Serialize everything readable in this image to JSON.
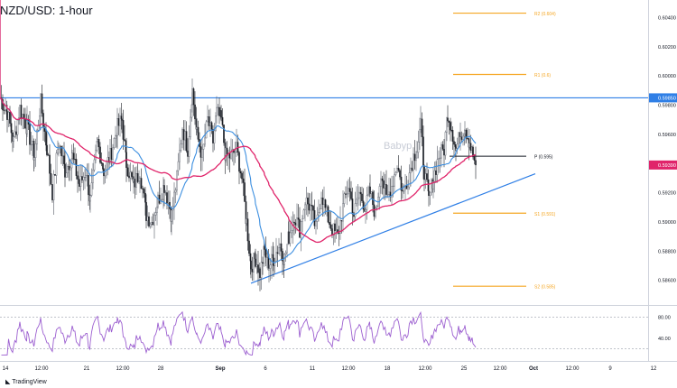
{
  "title": "NZD/USD: 1-hour",
  "watermark": "Babyp",
  "footer": "TradingView",
  "colors": {
    "bull": "#26a69a",
    "bear": "#131722",
    "candle": "#1b1e26",
    "sma_fast": "#3d8fe0",
    "sma_slow": "#e0246a",
    "resistance": "#2f7fe6",
    "pivots": "#f5a623",
    "rsi": "#9c5fd0",
    "price_label": "#e0246a",
    "resistance_label": "#2f7fe6"
  },
  "chart_data": {
    "type": "candlestick",
    "price_axis": {
      "ticks": [
        "0.60400",
        "0.60200",
        "0.60000",
        "0.59800",
        "0.59600",
        "0.59200",
        "0.59000",
        "0.58800",
        "0.58600"
      ],
      "tick_values": [
        0.604,
        0.602,
        0.6,
        0.598,
        0.596,
        0.592,
        0.59,
        0.588,
        0.586
      ],
      "ylim": [
        0.5845,
        0.6052
      ]
    },
    "time_axis": {
      "ticks": [
        "14",
        "12:00",
        "21",
        "12:00",
        "28",
        "Sep",
        "6",
        "11",
        "12:00",
        "18",
        "12:00",
        "25",
        "12:00",
        "Oct",
        "12:00",
        "9",
        "12"
      ],
      "tick_index": [
        0,
        40,
        90,
        130,
        172,
        238,
        288,
        340,
        380,
        423,
        465,
        508,
        548,
        585,
        628,
        670,
        718
      ]
    },
    "price_labels": [
      {
        "text": "0.59850",
        "value": 0.5985,
        "kind": "resistance"
      },
      {
        "text": "0.59390",
        "value": 0.5939,
        "kind": "current"
      }
    ],
    "resistance": {
      "value": 0.5985
    },
    "trendline": {
      "from": {
        "t": 278,
        "price": 0.5858
      },
      "to": {
        "t": 593,
        "price": 0.5933
      }
    },
    "pivots": [
      {
        "label": "R2 (0.604)",
        "value": 0.6043
      },
      {
        "label": "R1 (0.6)",
        "value": 0.6001
      },
      {
        "label": "P (0.595)",
        "value": 0.5945
      },
      {
        "label": "S1 (0.591)",
        "value": 0.5906
      },
      {
        "label": "S2 (0.585)",
        "value": 0.5856
      }
    ],
    "anchors": [
      [
        0,
        0.5985
      ],
      [
        8,
        0.5975
      ],
      [
        15,
        0.5955
      ],
      [
        22,
        0.5978
      ],
      [
        30,
        0.5965
      ],
      [
        38,
        0.5945
      ],
      [
        45,
        0.5982
      ],
      [
        52,
        0.595
      ],
      [
        58,
        0.592
      ],
      [
        65,
        0.5955
      ],
      [
        72,
        0.5935
      ],
      [
        80,
        0.5945
      ],
      [
        88,
        0.5925
      ],
      [
        95,
        0.5935
      ],
      [
        100,
        0.5915
      ],
      [
        108,
        0.5955
      ],
      [
        115,
        0.5935
      ],
      [
        122,
        0.5945
      ],
      [
        130,
        0.5965
      ],
      [
        135,
        0.597
      ],
      [
        140,
        0.594
      ],
      [
        148,
        0.5925
      ],
      [
        155,
        0.5935
      ],
      [
        162,
        0.5905
      ],
      [
        168,
        0.59
      ],
      [
        175,
        0.5915
      ],
      [
        182,
        0.5925
      ],
      [
        190,
        0.5905
      ],
      [
        196,
        0.593
      ],
      [
        202,
        0.5965
      ],
      [
        208,
        0.595
      ],
      [
        213,
        0.599
      ],
      [
        218,
        0.596
      ],
      [
        224,
        0.5945
      ],
      [
        230,
        0.597
      ],
      [
        236,
        0.5955
      ],
      [
        240,
        0.5975
      ],
      [
        245,
        0.597
      ],
      [
        250,
        0.5945
      ],
      [
        256,
        0.5945
      ],
      [
        262,
        0.595
      ],
      [
        268,
        0.593
      ],
      [
        273,
        0.59
      ],
      [
        278,
        0.587
      ],
      [
        283,
        0.5875
      ],
      [
        288,
        0.5865
      ],
      [
        293,
        0.588
      ],
      [
        298,
        0.587
      ],
      [
        303,
        0.5875
      ],
      [
        310,
        0.5885
      ],
      [
        315,
        0.5875
      ],
      [
        320,
        0.589
      ],
      [
        326,
        0.5905
      ],
      [
        332,
        0.5895
      ],
      [
        338,
        0.5915
      ],
      [
        344,
        0.591
      ],
      [
        350,
        0.5895
      ],
      [
        356,
        0.592
      ],
      [
        362,
        0.5905
      ],
      [
        368,
        0.5895
      ],
      [
        374,
        0.589
      ],
      [
        380,
        0.591
      ],
      [
        386,
        0.5925
      ],
      [
        392,
        0.5905
      ],
      [
        398,
        0.592
      ],
      [
        405,
        0.591
      ],
      [
        410,
        0.592
      ],
      [
        416,
        0.5905
      ],
      [
        422,
        0.5935
      ],
      [
        428,
        0.5915
      ],
      [
        434,
        0.5925
      ],
      [
        440,
        0.594
      ],
      [
        446,
        0.592
      ],
      [
        452,
        0.593
      ],
      [
        458,
        0.5945
      ],
      [
        462,
        0.595
      ],
      [
        466,
        0.5965
      ],
      [
        470,
        0.5935
      ],
      [
        475,
        0.5915
      ],
      [
        480,
        0.593
      ],
      [
        486,
        0.5945
      ],
      [
        492,
        0.595
      ],
      [
        496,
        0.5975
      ],
      [
        500,
        0.5965
      ],
      [
        505,
        0.595
      ],
      [
        510,
        0.596
      ],
      [
        515,
        0.5965
      ],
      [
        520,
        0.5955
      ],
      [
        524,
        0.5945
      ],
      [
        527,
        0.5939
      ]
    ],
    "rsi": {
      "ticks": [
        "80.00",
        "40.00"
      ],
      "tick_values": [
        80,
        40
      ],
      "levels": [
        80,
        20
      ],
      "ylim": [
        0,
        100
      ]
    }
  }
}
